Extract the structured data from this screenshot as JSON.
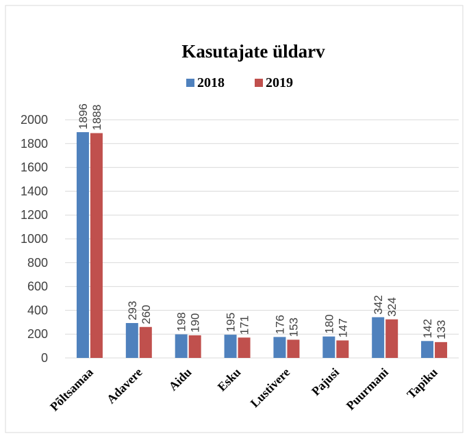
{
  "chart_data": {
    "type": "bar",
    "title": "Kasutajate üldarv",
    "categories": [
      "Põltsamaa",
      "Adavere",
      "Aidu",
      "Esku",
      "Lustivere",
      "Pajusi",
      "Puurmani",
      "Tapiku"
    ],
    "series": [
      {
        "name": "2018",
        "color": "#4f81bd",
        "values": [
          1896,
          293,
          198,
          195,
          176,
          180,
          342,
          142
        ]
      },
      {
        "name": "2019",
        "color": "#c0504d",
        "values": [
          1888,
          260,
          190,
          171,
          153,
          147,
          324,
          133
        ]
      }
    ],
    "ylim": [
      0,
      2000
    ],
    "yticks": [
      0,
      200,
      400,
      600,
      800,
      1000,
      1200,
      1400,
      1600,
      1800,
      2000
    ],
    "grid": true,
    "legend": "top"
  }
}
